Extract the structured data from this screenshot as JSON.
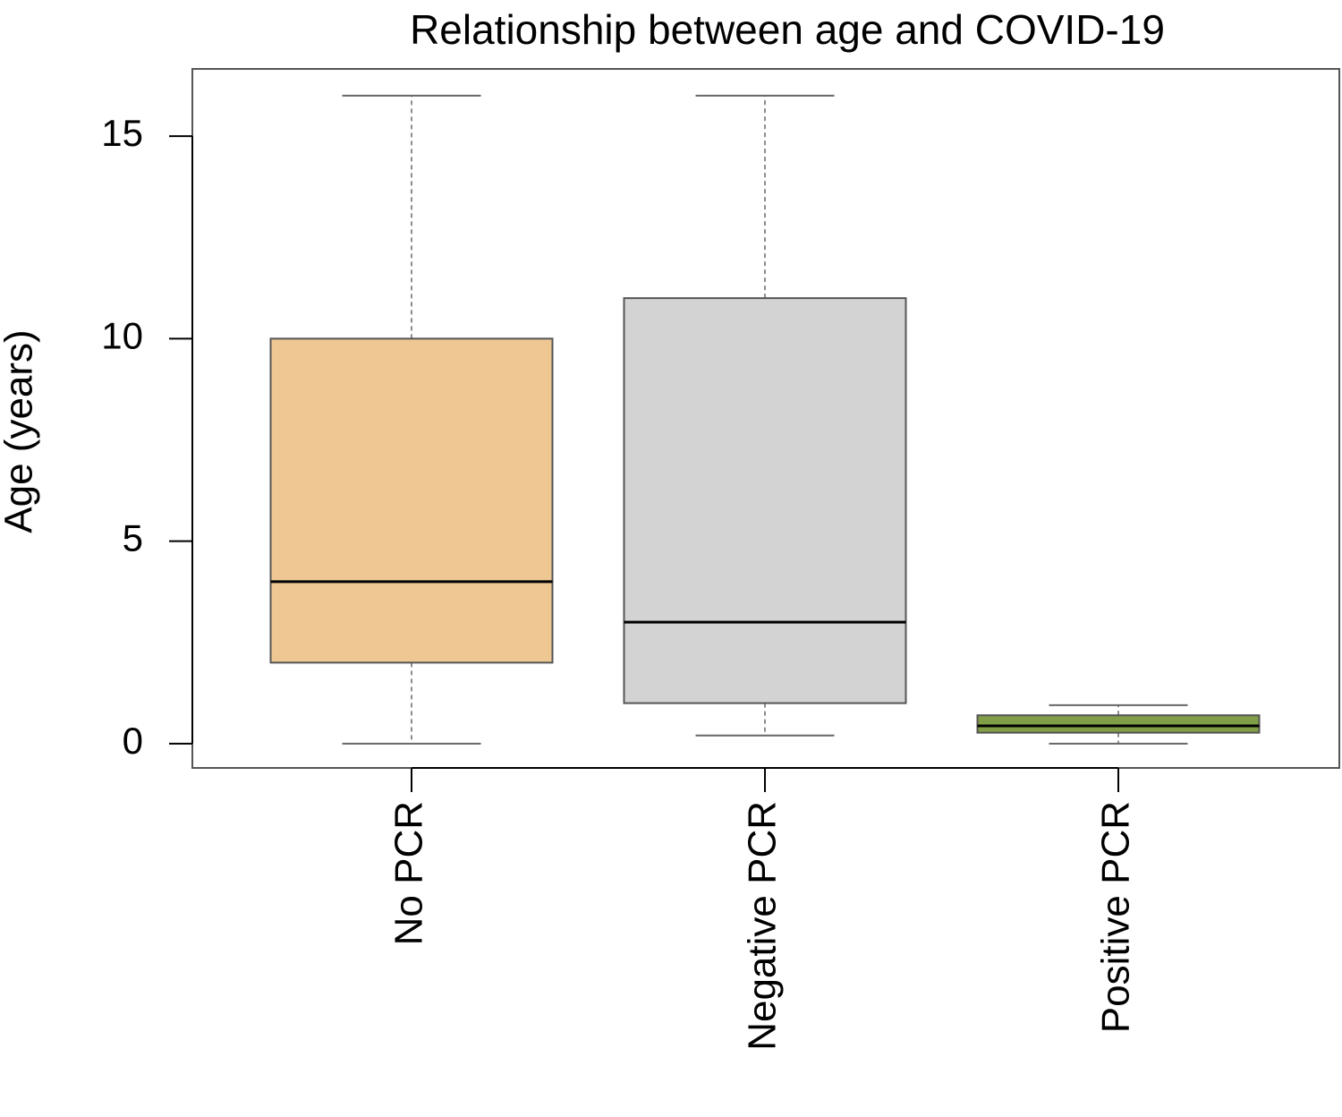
{
  "chart_data": {
    "type": "box",
    "title": "Relationship between age and COVID-19",
    "y_label": "Age (years)",
    "categories": [
      "No PCR",
      "Negative PCR",
      "Positive PCR"
    ],
    "min": [
      0,
      0.2,
      0
    ],
    "q1": [
      2,
      1,
      0.27
    ],
    "median": [
      4,
      3,
      0.44
    ],
    "q3": [
      10,
      11,
      0.7
    ],
    "max": [
      16,
      16,
      0.95
    ],
    "colors": [
      "#eec793",
      "#d3d3d3",
      "#7f9e45"
    ],
    "ylim": [
      -0.6,
      16.66
    ],
    "yticks": [
      0,
      5,
      10,
      15
    ]
  }
}
